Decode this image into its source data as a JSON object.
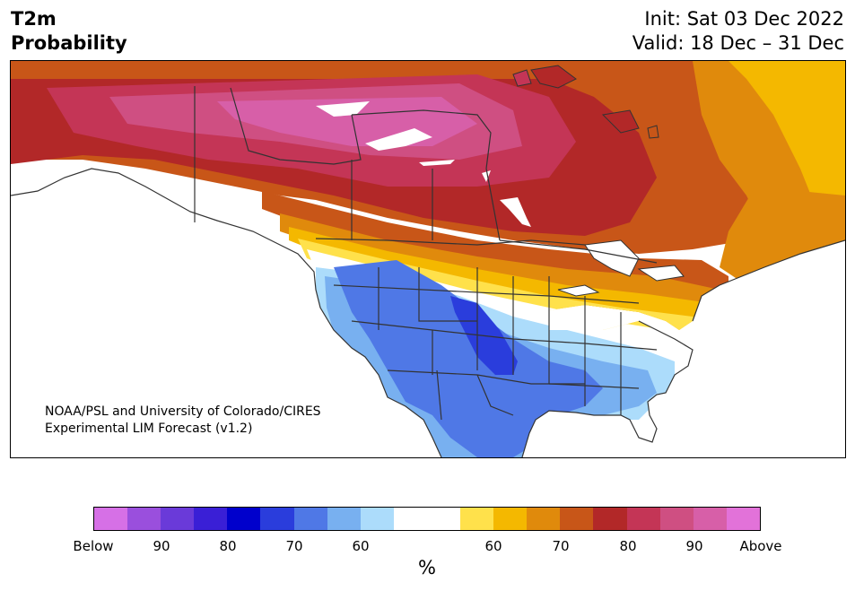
{
  "header": {
    "title_line1": "T2m",
    "title_line2": "Probability",
    "init_text": "Init: Sat 03 Dec 2022",
    "valid_text": "Valid: 18 Dec – 31 Dec"
  },
  "credit": {
    "line1": "NOAA/PSL and University of Colorado/CIRES",
    "line2": "Experimental LIM Forecast (v1.2)"
  },
  "colorbar": {
    "colors": [
      "#d670e6",
      "#9a4fdd",
      "#6a3ad9",
      "#3a1fd6",
      "#0000cc",
      "#2a3ddc",
      "#4f78e6",
      "#78b0f0",
      "#acdcfb",
      "#ffffff",
      "#ffffff",
      "#ffe14b",
      "#f4b800",
      "#e08a0c",
      "#c85618",
      "#b22828",
      "#c43556",
      "#cf4f82",
      "#d75fa8",
      "#e272d9"
    ],
    "labels": [
      "Below",
      "90",
      "80",
      "70",
      "60",
      "60",
      "70",
      "80",
      "90",
      "Above"
    ],
    "unit": "%"
  },
  "map": {
    "ocean_color": "#ffffff",
    "border_color": "#333333"
  }
}
